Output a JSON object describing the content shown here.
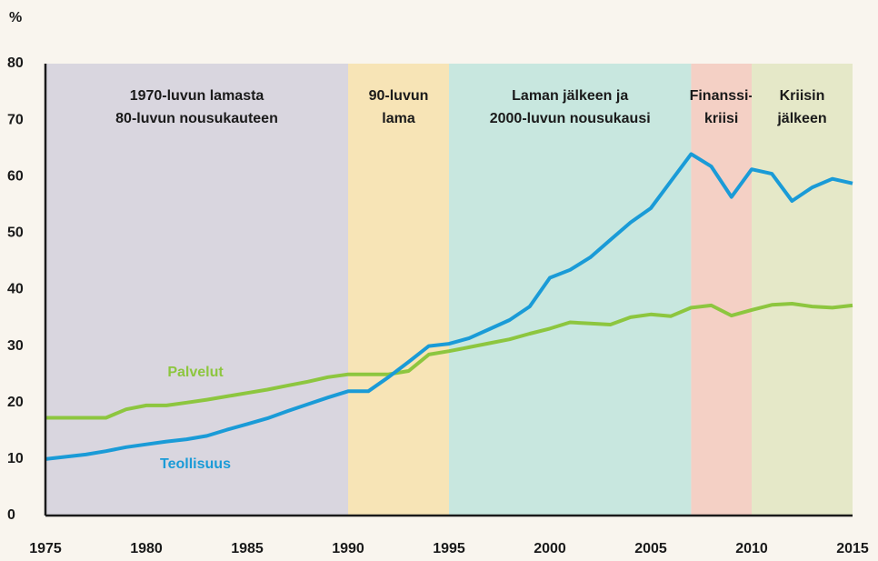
{
  "chart_data": {
    "type": "line",
    "y_label": "%",
    "x": [
      1975,
      1976,
      1977,
      1978,
      1979,
      1980,
      1981,
      1982,
      1983,
      1984,
      1985,
      1986,
      1987,
      1988,
      1989,
      1990,
      1991,
      1992,
      1993,
      1994,
      1995,
      1996,
      1997,
      1998,
      1999,
      2000,
      2001,
      2002,
      2003,
      2004,
      2005,
      2006,
      2007,
      2008,
      2009,
      2010,
      2011,
      2012,
      2013,
      2014,
      2015
    ],
    "series": [
      {
        "name": "Palvelut",
        "color": "#8dc63f",
        "values": [
          17.3,
          17.3,
          17.3,
          17.3,
          18.8,
          19.5,
          19.5,
          20,
          20.5,
          21.1,
          21.7,
          22.3,
          23,
          23.7,
          24.5,
          25,
          25,
          25,
          25.6,
          28.5,
          29.1,
          29.8,
          30.5,
          31.2,
          32.2,
          33.1,
          34.2,
          34,
          33.8,
          35.1,
          35.6,
          35.3,
          36.8,
          37.2,
          35.4,
          36.4,
          37.3,
          37.5,
          37,
          36.8,
          37.2
        ]
      },
      {
        "name": "Teollisuus",
        "color": "#1a9bd7",
        "values": [
          10,
          10.4,
          10.8,
          11.4,
          12.1,
          12.6,
          13.1,
          13.5,
          14.1,
          15.2,
          16.2,
          17.2,
          18.5,
          19.7,
          20.9,
          22,
          22,
          24.5,
          27.2,
          30,
          30.4,
          31.4,
          33,
          34.6,
          37,
          42.1,
          43.5,
          45.7,
          48.8,
          51.9,
          54.4,
          59.2,
          64,
          61.8,
          56.4,
          61.3,
          60.5,
          55.7,
          58.1,
          59.6,
          58.8
        ]
      }
    ],
    "periods": [
      {
        "label": [
          "1970-luvun lamasta",
          "80-luvun nousukauteen"
        ],
        "start": 1975,
        "end": 1990,
        "color": "#d9d6df"
      },
      {
        "label": [
          "90-luvun",
          "lama"
        ],
        "start": 1990,
        "end": 1995,
        "color": "#f7e4b6"
      },
      {
        "label": [
          "Laman jälkeen ja",
          "2000-luvun nousukausi"
        ],
        "start": 1995,
        "end": 2007,
        "color": "#c8e7df"
      },
      {
        "label": [
          "Finanssi-",
          "kriisi"
        ],
        "start": 2007,
        "end": 2010,
        "color": "#f4d0c5"
      },
      {
        "label": [
          "Kriisin",
          "jälkeen"
        ],
        "start": 2010,
        "end": 2015,
        "color": "#e5e8c8"
      }
    ],
    "xlim": [
      1975,
      2015
    ],
    "xticks": [
      1975,
      1980,
      1985,
      1990,
      1995,
      2000,
      2005,
      2010,
      2015
    ],
    "ylim": [
      0,
      80
    ],
    "yticks": [
      0,
      10,
      20,
      30,
      40,
      50,
      60,
      70,
      80
    ]
  }
}
